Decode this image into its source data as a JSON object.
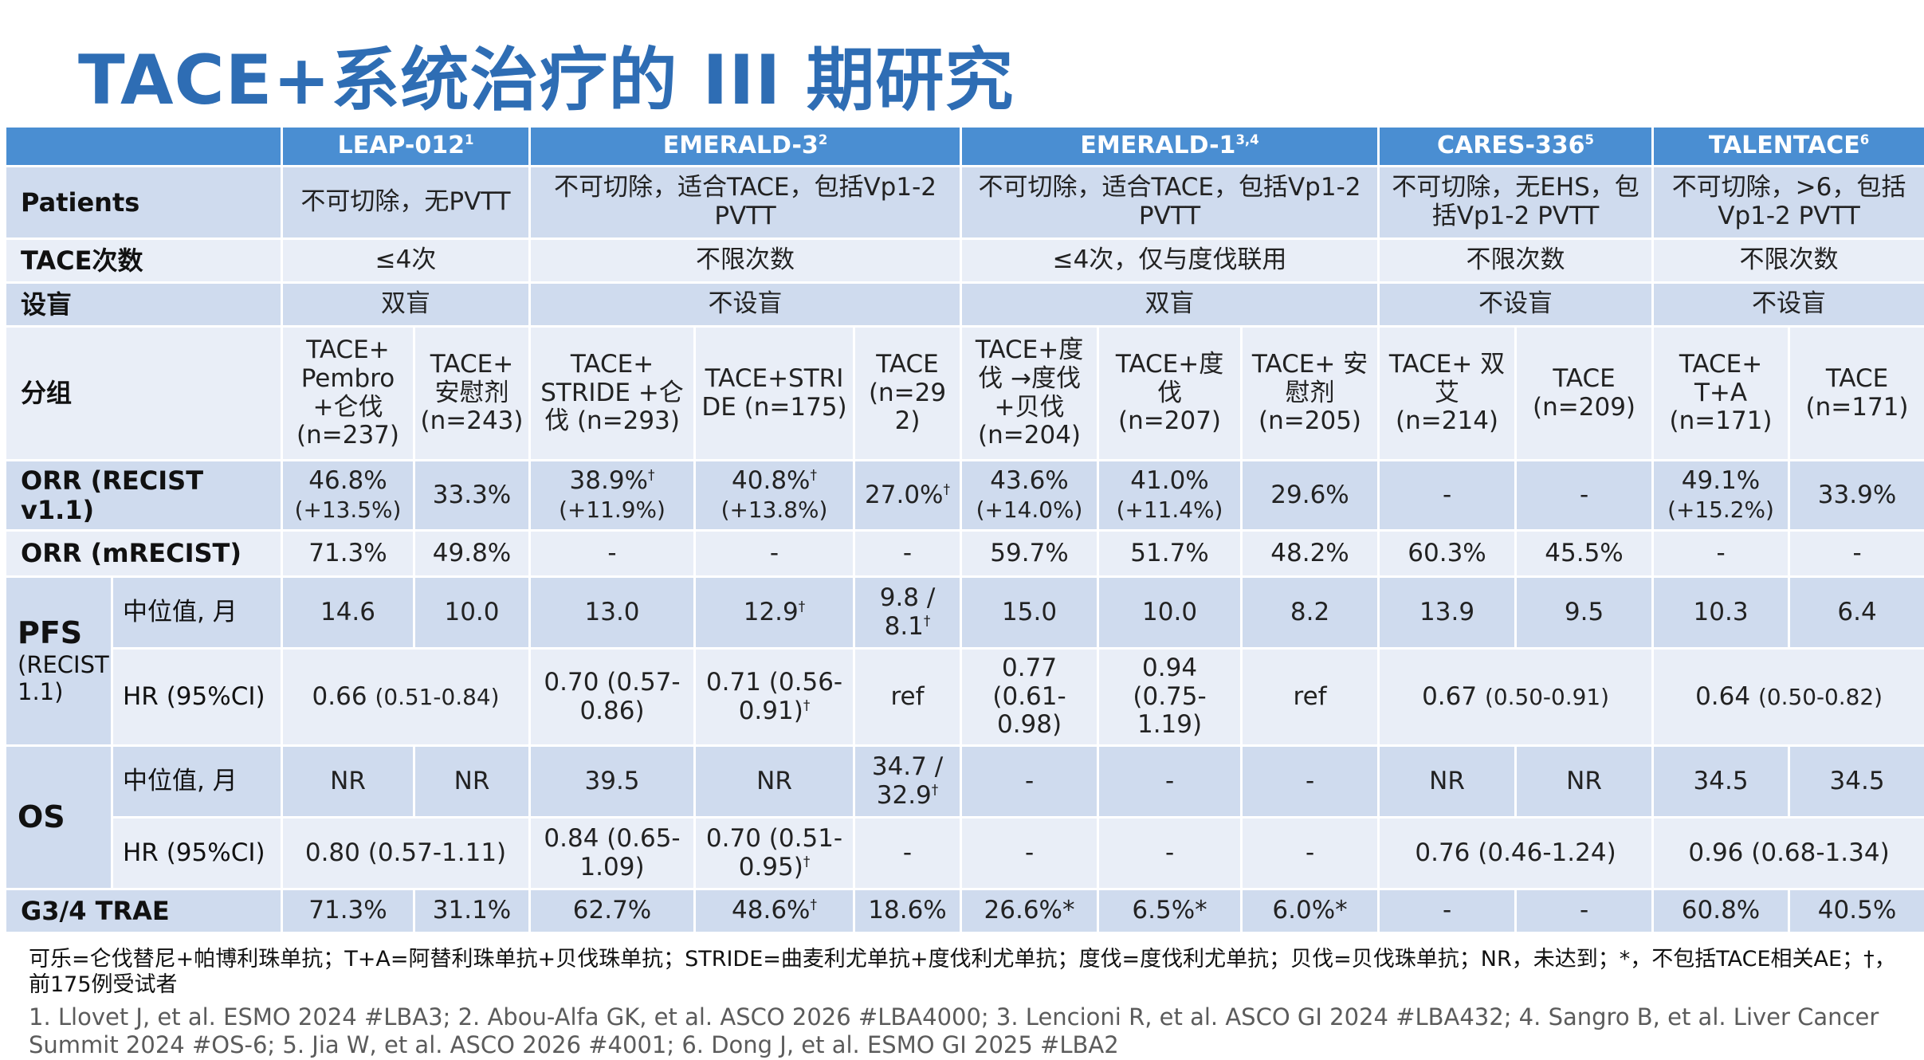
{
  "title": "TACE+系统治疗的 III 期研究",
  "header": {
    "studies": [
      {
        "name": "LEAP-012",
        "ref": "1"
      },
      {
        "name": "EMERALD-3",
        "ref": "2"
      },
      {
        "name": "EMERALD-1",
        "ref": "3,4"
      },
      {
        "name": "CARES-336",
        "ref": "5"
      },
      {
        "name": "TALENTACE",
        "ref": "6"
      }
    ]
  },
  "rows": {
    "patients": {
      "label": "Patients",
      "values": [
        "不可切除，无PVTT",
        "不可切除，适合TACE，包括Vp1-2 PVTT",
        "不可切除，适合TACE，包括Vp1-2 PVTT",
        "不可切除，无EHS，包括Vp1-2 PVTT",
        "不可切除，>6，包括Vp1-2 PVTT"
      ]
    },
    "tace_count": {
      "label": "TACE次数",
      "values": [
        "≤4次",
        "不限次数",
        "≤4次，仅与度伐联用",
        "不限次数",
        "不限次数"
      ]
    },
    "blinding": {
      "label": "设盲",
      "values": [
        "双盲",
        "不设盲",
        "双盲",
        "不设盲",
        "不设盲"
      ]
    },
    "arms": {
      "label": "分组",
      "values": [
        "TACE+ Pembro +仑伐 (n=237)",
        "TACE+ 安慰剂 (n=243)",
        "TACE+ STRIDE +仑伐 (n=293)",
        "TACE+STRI DE (n=175)",
        "TACE (n=29 2)",
        "TACE+度 伐 →度伐 +贝伐 (n=204)",
        "TACE+度 伐 (n=207)",
        "TACE+ 安慰剂 (n=205)",
        "TACE+ 双艾 (n=214)",
        "TACE (n=209)",
        "TACE+ T+A (n=171)",
        "TACE (n=171)"
      ]
    },
    "orr_recist": {
      "label": "ORR (RECIST v1.1)",
      "values": [
        {
          "main": "46.8%",
          "sub": "(+13.5%)"
        },
        {
          "main": "33.3%"
        },
        {
          "main": "38.9%",
          "dagger": "†",
          "sub": "(+11.9%)"
        },
        {
          "main": "40.8%",
          "dagger": "†",
          "sub": "(+13.8%)"
        },
        {
          "main": "27.0%",
          "dagger": "†"
        },
        {
          "main": "43.6%",
          "sub": "(+14.0%)"
        },
        {
          "main": "41.0%",
          "sub": "(+11.4%)"
        },
        {
          "main": "29.6%"
        },
        {
          "main": "-"
        },
        {
          "main": "-"
        },
        {
          "main": "49.1%",
          "sub": "(+15.2%)"
        },
        {
          "main": "33.9%"
        }
      ]
    },
    "orr_mrecist": {
      "label": "ORR (mRECIST)",
      "values": [
        "71.3%",
        "49.8%",
        "-",
        "-",
        "-",
        "59.7%",
        "51.7%",
        "48.2%",
        "60.3%",
        "45.5%",
        "-",
        "-"
      ]
    },
    "pfs": {
      "label": "PFS",
      "label_sub": "(RECIST 1.1)",
      "median": {
        "label": "中位值, 月",
        "values": [
          {
            "main": "14.6"
          },
          {
            "main": "10.0"
          },
          {
            "main": "13.0"
          },
          {
            "main": "12.9",
            "dagger": "†"
          },
          {
            "main": "9.8 / 8.1",
            "dagger": "†"
          },
          {
            "main": "15.0"
          },
          {
            "main": "10.0"
          },
          {
            "main": "8.2"
          },
          {
            "main": "13.9"
          },
          {
            "main": "9.5"
          },
          {
            "main": "10.3"
          },
          {
            "main": "6.4"
          }
        ]
      },
      "hr": {
        "label": "HR (95%CI)",
        "values": [
          {
            "main": "0.66",
            "ci": "(0.51-0.84)"
          },
          {
            "main": "0.70 (0.57-0.86)"
          },
          {
            "main": "0.71 (0.56-0.91)",
            "dagger": "†"
          },
          {
            "main": "ref"
          },
          {
            "main": "0.77",
            "ci": "(0.61-0.98)"
          },
          {
            "main": "0.94",
            "ci": "(0.75-1.19)"
          },
          {
            "main": "ref"
          },
          {
            "main": "0.67",
            "ci": "(0.50-0.91)"
          },
          {
            "main": "0.64",
            "ci": "(0.50-0.82)"
          }
        ]
      }
    },
    "os": {
      "label": "OS",
      "median": {
        "label": "中位值, 月",
        "values": [
          {
            "main": "NR"
          },
          {
            "main": "NR"
          },
          {
            "main": "39.5"
          },
          {
            "main": "NR"
          },
          {
            "main": "34.7 / 32.9",
            "dagger": "†"
          },
          {
            "main": "-"
          },
          {
            "main": "-"
          },
          {
            "main": "-"
          },
          {
            "main": "NR"
          },
          {
            "main": "NR"
          },
          {
            "main": "34.5"
          },
          {
            "main": "34.5"
          }
        ]
      },
      "hr": {
        "label": "HR (95%CI)",
        "values": [
          {
            "main": "0.80 (0.57-1.11)"
          },
          {
            "main": "0.84 (0.65-1.09)"
          },
          {
            "main": "0.70 (0.51-0.95)",
            "dagger": "†"
          },
          {
            "main": "-"
          },
          {
            "main": "-"
          },
          {
            "main": "-"
          },
          {
            "main": "-"
          },
          {
            "main": "0.76 (0.46-1.24)"
          },
          {
            "main": "0.96 (0.68-1.34)"
          }
        ]
      }
    },
    "g34": {
      "label": "G3/4 TRAE",
      "values": [
        {
          "main": "71.3%"
        },
        {
          "main": "31.1%"
        },
        {
          "main": "62.7%"
        },
        {
          "main": "48.6%",
          "dagger": "†"
        },
        {
          "main": "18.6%"
        },
        {
          "main": "26.6%*"
        },
        {
          "main": "6.5%*"
        },
        {
          "main": "6.0%*"
        },
        {
          "main": "-"
        },
        {
          "main": "-"
        },
        {
          "main": "60.8%"
        },
        {
          "main": "40.5%"
        }
      ]
    }
  },
  "footnotes": {
    "abbrev": "可乐=仑伐替尼+帕博利珠单抗；T+A=阿替利珠单抗+贝伐珠单抗；STRIDE=曲麦利尤单抗+度伐利尤单抗；度伐=度伐利尤单抗；贝伐=贝伐珠单抗；NR，未达到；*，不包括TACE相关AE；†，前175例受试者",
    "refs": "1. Llovet J, et al. ESMO 2024 #LBA3; 2. Abou-Alfa GK, et al. ASCO 2026 #LBA4000; 3. Lencioni R, et al. ASCO GI 2024 #LBA432; 4. Sangro B, et al. Liver Cancer Summit 2024 #OS-6; 5. Jia W, et al. ASCO 2026 #4001; 6. Dong J, et al. ESMO GI 2025 #LBA2"
  },
  "colors": {
    "title": "#2e6db4",
    "header_bg": "#4a8ed2",
    "row_dark": "#cfdbee",
    "row_light": "#e9eef7"
  }
}
